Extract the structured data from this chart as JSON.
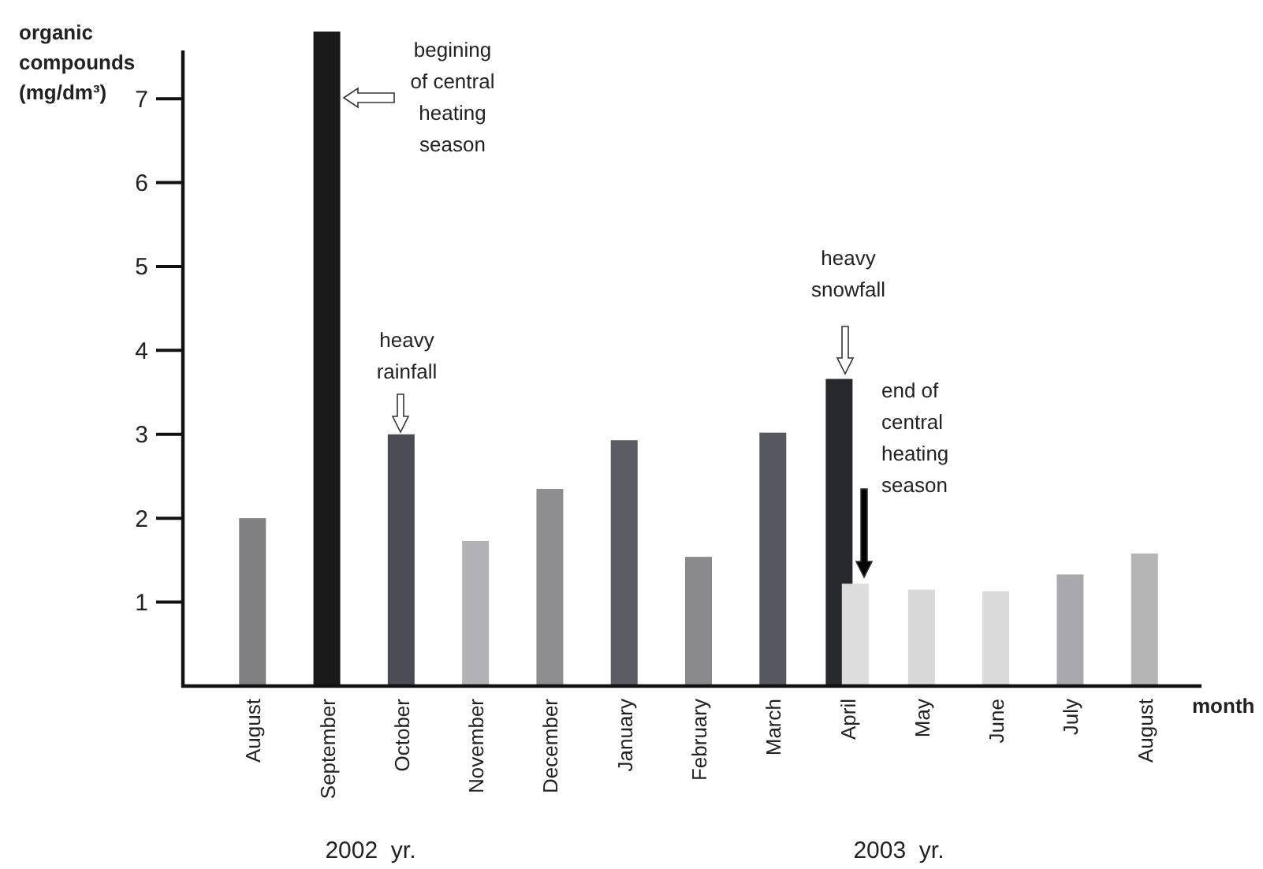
{
  "chart_data": {
    "type": "bar",
    "xlabel": "month",
    "ylabel": "organic compounds (mg/dm³)",
    "categories": [
      "August",
      "September",
      "October",
      "November",
      "December",
      "January",
      "February",
      "March",
      "April",
      "May",
      "June",
      "July",
      "August"
    ],
    "series": [
      {
        "colors": [
          "#808084",
          "#1a1a1a",
          "#4a4e54",
          "#b2b2b6",
          "#8e8e92",
          "#5a5e64",
          "#8a8a8e",
          "#55595f",
          "#25292d",
          "#d8d8d8",
          "#dadada",
          "#a8a8ae",
          "#b4b4b4"
        ],
        "values": [
          2.0,
          7.8,
          3.0,
          1.73,
          2.35,
          2.93,
          1.54,
          3.02,
          3.66,
          1.15,
          1.13,
          1.33,
          1.58
        ]
      },
      {
        "color": "#dcdcdc",
        "values": [
          null,
          null,
          null,
          null,
          null,
          null,
          null,
          null,
          1.22,
          null,
          null,
          null,
          null
        ]
      }
    ],
    "ylim": [
      0,
      7.8
    ],
    "yticks": [
      1,
      2,
      3,
      4,
      5,
      6,
      7
    ],
    "grid": false,
    "annotations": [
      "begining of central heating season",
      "heavy rainfall",
      "heavy snowfall",
      "end of central heating season",
      "2002  yr.",
      "2003  yr."
    ]
  }
}
